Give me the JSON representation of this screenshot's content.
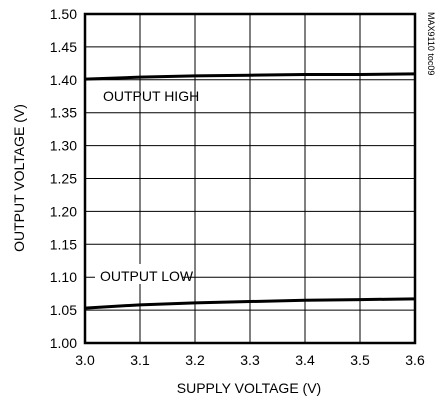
{
  "chart_data": {
    "type": "line",
    "xlabel": "SUPPLY VOLTAGE (V)",
    "ylabel": "OUTPUT VOLTAGE (V)",
    "xlim": [
      3.0,
      3.6
    ],
    "ylim": [
      1.0,
      1.5
    ],
    "x_ticks": [
      3.0,
      3.1,
      3.2,
      3.3,
      3.4,
      3.5,
      3.6
    ],
    "x_tick_labels": [
      "3.0",
      "3.1",
      "3.2",
      "3.3",
      "3.4",
      "3.5",
      "3.6"
    ],
    "y_ticks": [
      1.0,
      1.05,
      1.1,
      1.15,
      1.2,
      1.25,
      1.3,
      1.35,
      1.4,
      1.45,
      1.5
    ],
    "y_tick_labels": [
      "1.00",
      "1.05",
      "1.10",
      "1.15",
      "1.20",
      "1.25",
      "1.30",
      "1.35",
      "1.40",
      "1.45",
      "1.50"
    ],
    "grid": true,
    "annotations": [
      "OUTPUT HIGH",
      "OUTPUT LOW"
    ],
    "side_label": "MAX9110 toc09",
    "series": [
      {
        "name": "OUTPUT HIGH",
        "x": [
          3.0,
          3.1,
          3.2,
          3.3,
          3.4,
          3.5,
          3.6
        ],
        "y": [
          1.401,
          1.404,
          1.406,
          1.407,
          1.408,
          1.408,
          1.409
        ]
      },
      {
        "name": "OUTPUT LOW",
        "x": [
          3.0,
          3.1,
          3.2,
          3.3,
          3.4,
          3.5,
          3.6
        ],
        "y": [
          1.053,
          1.058,
          1.061,
          1.063,
          1.065,
          1.066,
          1.067
        ]
      }
    ],
    "colors": {
      "line": "#000000",
      "grid": "#000000",
      "background": "#ffffff"
    }
  }
}
